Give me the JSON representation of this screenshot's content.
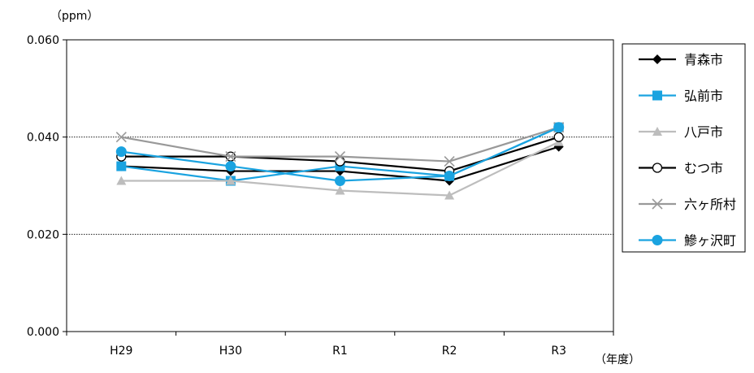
{
  "chart_data": {
    "type": "line",
    "ylabel": "（ppm）",
    "xlabel": "（年度）",
    "categories": [
      "H29",
      "H30",
      "R1",
      "R2",
      "R3"
    ],
    "ylim": [
      0,
      0.06
    ],
    "yticks": [
      "0.000",
      "0.020",
      "0.040",
      "0.060"
    ],
    "ytick_values": [
      0,
      0.02,
      0.04,
      0.06
    ],
    "grid": "horizontal dotted",
    "legend_position": "right",
    "series": [
      {
        "name": "青森市",
        "color": "#000000",
        "marker": "diamond",
        "values": [
          0.034,
          0.033,
          0.033,
          0.031,
          0.038
        ]
      },
      {
        "name": "弘前市",
        "color": "#1aa3e0",
        "marker": "square",
        "values": [
          0.034,
          0.031,
          0.034,
          0.032,
          0.042
        ]
      },
      {
        "name": "八戸市",
        "color": "#bdbdbd",
        "marker": "triangle",
        "values": [
          0.031,
          0.031,
          0.029,
          0.028,
          0.039
        ]
      },
      {
        "name": "むつ市",
        "color": "#000000",
        "marker": "circle-open",
        "values": [
          0.036,
          0.036,
          0.035,
          0.033,
          0.04
        ]
      },
      {
        "name": "六ヶ所村",
        "color": "#999999",
        "marker": "x",
        "values": [
          0.04,
          0.036,
          0.036,
          0.035,
          0.042
        ]
      },
      {
        "name": "鰺ヶ沢町",
        "color": "#1aa3e0",
        "marker": "circle",
        "values": [
          0.037,
          0.034,
          0.031,
          0.032,
          0.042
        ]
      }
    ]
  }
}
